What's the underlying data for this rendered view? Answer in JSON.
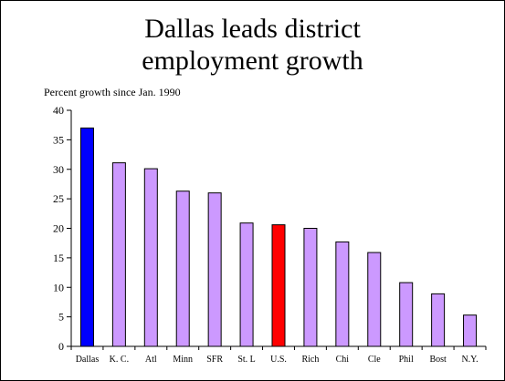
{
  "chart_data": {
    "type": "bar",
    "title_lines": [
      "Dallas leads district",
      "employment growth"
    ],
    "subtitle": "Percent growth since Jan. 1990",
    "categories": [
      "Dallas",
      "K. C.",
      "Atl",
      "Minn",
      "SFR",
      "St. L",
      "U.S.",
      "Rich",
      "Chi",
      "Cle",
      "Phil",
      "Bost",
      "N.Y."
    ],
    "values": [
      37.0,
      31.1,
      30.1,
      26.3,
      26.0,
      20.9,
      20.6,
      20.0,
      17.7,
      15.9,
      10.8,
      8.9,
      5.3
    ],
    "bar_colors": [
      "#0000ff",
      "#cc99ff",
      "#cc99ff",
      "#cc99ff",
      "#cc99ff",
      "#cc99ff",
      "#ff0000",
      "#cc99ff",
      "#cc99ff",
      "#cc99ff",
      "#cc99ff",
      "#cc99ff",
      "#cc99ff"
    ],
    "yticks": [
      0,
      5,
      10,
      15,
      20,
      25,
      30,
      35,
      40
    ],
    "ylim": [
      0,
      40
    ],
    "grid": false,
    "legend": "none"
  }
}
